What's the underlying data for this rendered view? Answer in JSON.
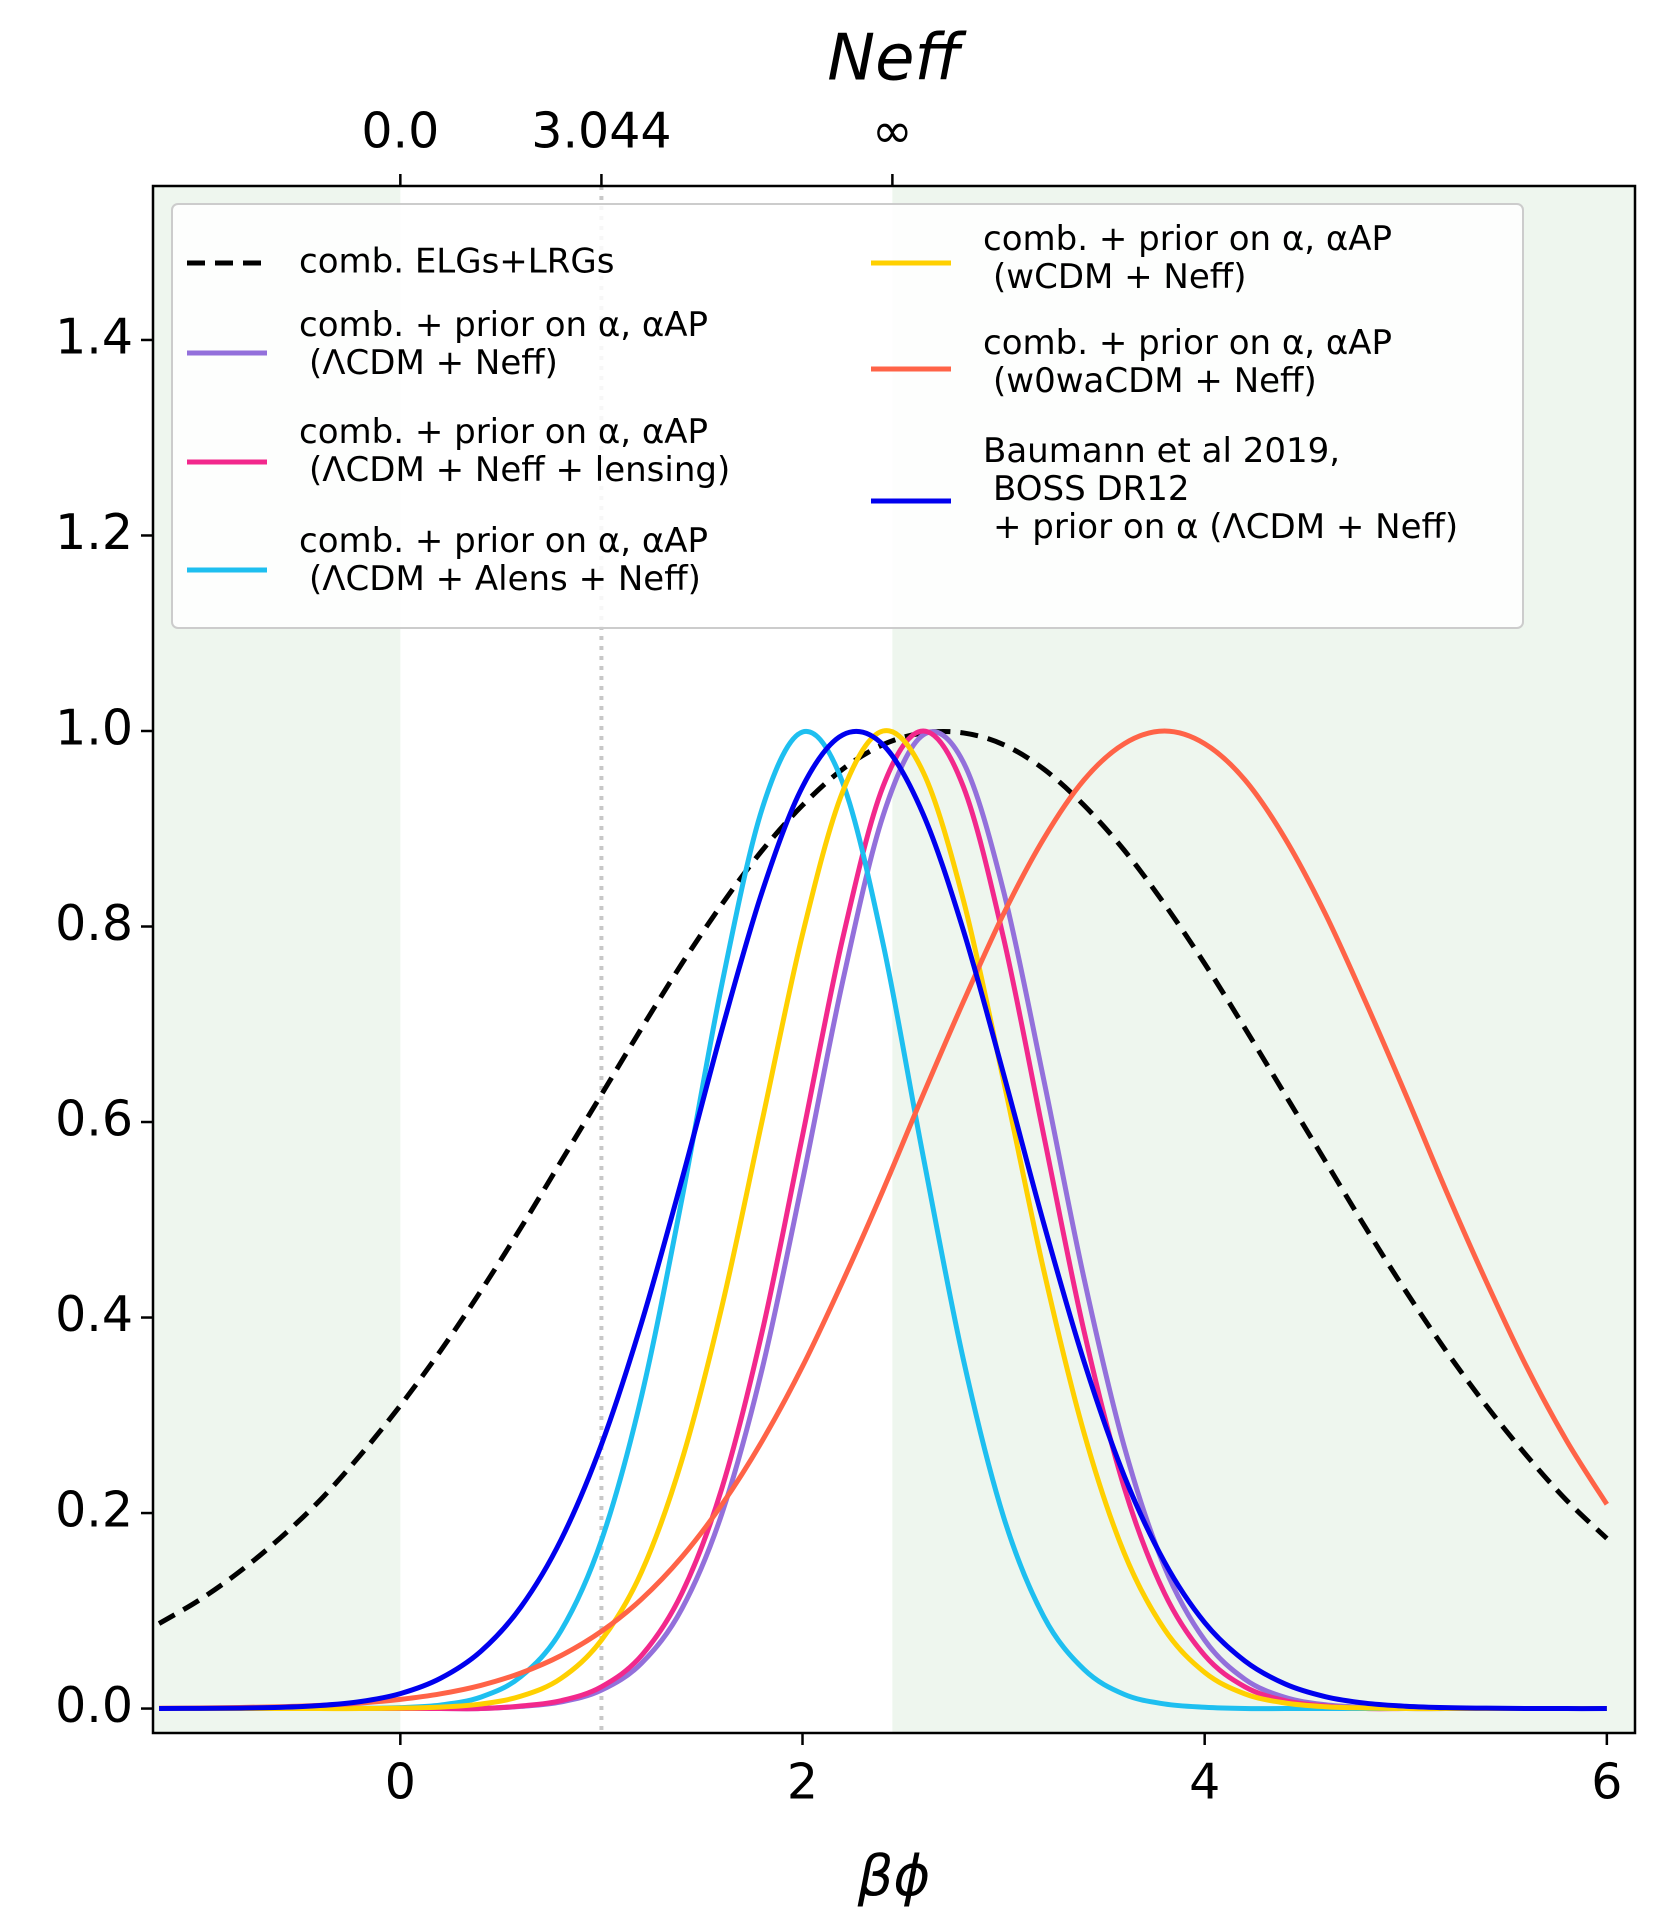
{
  "chart_data": {
    "type": "line",
    "xlabel": "βϕ",
    "top_axis_label": "Neff",
    "x": [
      -1.2,
      -1.0,
      -0.8,
      -0.6,
      -0.4,
      -0.2,
      0.0,
      0.2,
      0.4,
      0.6,
      0.8,
      1.0,
      1.2,
      1.4,
      1.6,
      1.8,
      2.0,
      2.2,
      2.4,
      2.6,
      2.8,
      3.0,
      3.2,
      3.4,
      3.6,
      3.8,
      4.0,
      4.2,
      4.4,
      4.6,
      4.8,
      5.0,
      5.2,
      5.4,
      5.6,
      5.8,
      6.0
    ],
    "xlim": [
      -1.23,
      6.14
    ],
    "ylim": [
      -0.025,
      1.5575
    ],
    "xticks": [
      0,
      2,
      4,
      6
    ],
    "yticks": [
      {
        "value": 0,
        "label": "0.0"
      },
      0.2,
      0.4,
      0.6,
      0.8,
      {
        "value": 1,
        "label": "1.0"
      },
      1.2,
      1.4
    ],
    "top_xticks": [
      {
        "value": 0,
        "label": "0.0"
      },
      {
        "value": 1,
        "label": "3.044"
      },
      {
        "value": 2.447,
        "label": "∞"
      }
    ],
    "shaded_spans": [
      [
        -1.23,
        0
      ],
      [
        2.447,
        6.14
      ]
    ],
    "reference_line_x": 1.0,
    "series": [
      {
        "name": "comb. ELGs+LRGs",
        "color": "#000000",
        "dash": true,
        "values": [
          0.087,
          0.111,
          0.14,
          0.174,
          0.213,
          0.259,
          0.31,
          0.366,
          0.427,
          0.492,
          0.56,
          0.628,
          0.696,
          0.762,
          0.823,
          0.878,
          0.924,
          0.961,
          0.986,
          0.998,
          0.998,
          0.986,
          0.961,
          0.924,
          0.878,
          0.823,
          0.762,
          0.696,
          0.628,
          0.56,
          0.492,
          0.427,
          0.366,
          0.31,
          0.259,
          0.213,
          0.174
        ]
      },
      {
        "name": "comb. + prior on α, αAP\n(ΛCDM + Neff)",
        "color": "#9370db",
        "dash": false,
        "values": [
          0,
          0,
          0,
          0,
          0,
          0,
          0,
          0,
          0,
          0.0022,
          0.0068,
          0.0188,
          0.0465,
          0.102,
          0.2,
          0.348,
          0.54,
          0.744,
          0.913,
          0.996,
          0.968,
          0.836,
          0.643,
          0.44,
          0.268,
          0.145,
          0.07,
          0.03,
          0.0114,
          0.0039,
          0.0012,
          0,
          0,
          0,
          0,
          0,
          0
        ]
      },
      {
        "name": "comb. + prior on α, αAP\n(ΛCDM + Neff + lensing)",
        "color": "#f2288c",
        "dash": false,
        "values": [
          0,
          0,
          0,
          0,
          0,
          0,
          0,
          0,
          0,
          0.0026,
          0.0081,
          0.0223,
          0.0544,
          0.118,
          0.226,
          0.386,
          0.586,
          0.788,
          0.943,
          1.0,
          0.943,
          0.788,
          0.586,
          0.386,
          0.226,
          0.118,
          0.0544,
          0.0223,
          0.0081,
          0.0026,
          0,
          0,
          0,
          0,
          0,
          0,
          0
        ]
      },
      {
        "name": "comb. + prior on α, αAP\n(ΛCDM + Alens + Neff)",
        "color": "#1ebff0",
        "dash": false,
        "values": [
          0,
          0,
          0,
          0,
          0,
          0.0002,
          0.001,
          0.0036,
          0.0117,
          0.0328,
          0.08,
          0.172,
          0.32,
          0.521,
          0.742,
          0.921,
          0.999,
          0.947,
          0.783,
          0.565,
          0.357,
          0.196,
          0.094,
          0.04,
          0.0145,
          0.0047,
          0.0013,
          0,
          0,
          0,
          0,
          0,
          0,
          0,
          0,
          0,
          0
        ]
      },
      {
        "name": "comb. + prior on α, αAP\n(wCDM + Neff)",
        "color": "#ffd000",
        "dash": false,
        "values": [
          0,
          0,
          0,
          0,
          0,
          0,
          0.0004,
          0.0015,
          0.0046,
          0.0127,
          0.031,
          0.07,
          0.14,
          0.254,
          0.412,
          0.602,
          0.792,
          0.938,
          1.0,
          0.958,
          0.827,
          0.642,
          0.448,
          0.282,
          0.159,
          0.081,
          0.037,
          0.015,
          0.0057,
          0.0019,
          0.0006,
          0,
          0,
          0,
          0,
          0,
          0
        ]
      },
      {
        "name": "comb. + prior on α, αAP\n(w0waCDM + Neff)",
        "color": "#ff6347",
        "dash": false,
        "values": [
          0.0003,
          0.0006,
          0.0011,
          0.0019,
          0.0033,
          0.0056,
          0.0094,
          0.0151,
          0.0237,
          0.0364,
          0.0543,
          0.079,
          0.112,
          0.155,
          0.209,
          0.274,
          0.35,
          0.437,
          0.53,
          0.628,
          0.723,
          0.813,
          0.89,
          0.95,
          0.987,
          1.0,
          0.987,
          0.95,
          0.89,
          0.813,
          0.723,
          0.628,
          0.53,
          0.437,
          0.35,
          0.274,
          0.209
        ]
      },
      {
        "name": "Baumann et al 2019,\nBOSS DR12\n+ prior on α (ΛCDM + Neff)",
        "color": "#0000ee",
        "dash": false,
        "values": [
          0.0001,
          0.0002,
          0.0005,
          0.0012,
          0.0031,
          0.0071,
          0.0153,
          0.031,
          0.0585,
          0.104,
          0.173,
          0.27,
          0.395,
          0.541,
          0.695,
          0.836,
          0.943,
          0.996,
          0.986,
          0.915,
          0.796,
          0.649,
          0.496,
          0.355,
          0.238,
          0.15,
          0.088,
          0.0487,
          0.0252,
          0.0122,
          0.0055,
          0.0024,
          0.0009,
          0.0004,
          0.0001,
          0,
          0
        ]
      }
    ]
  }
}
